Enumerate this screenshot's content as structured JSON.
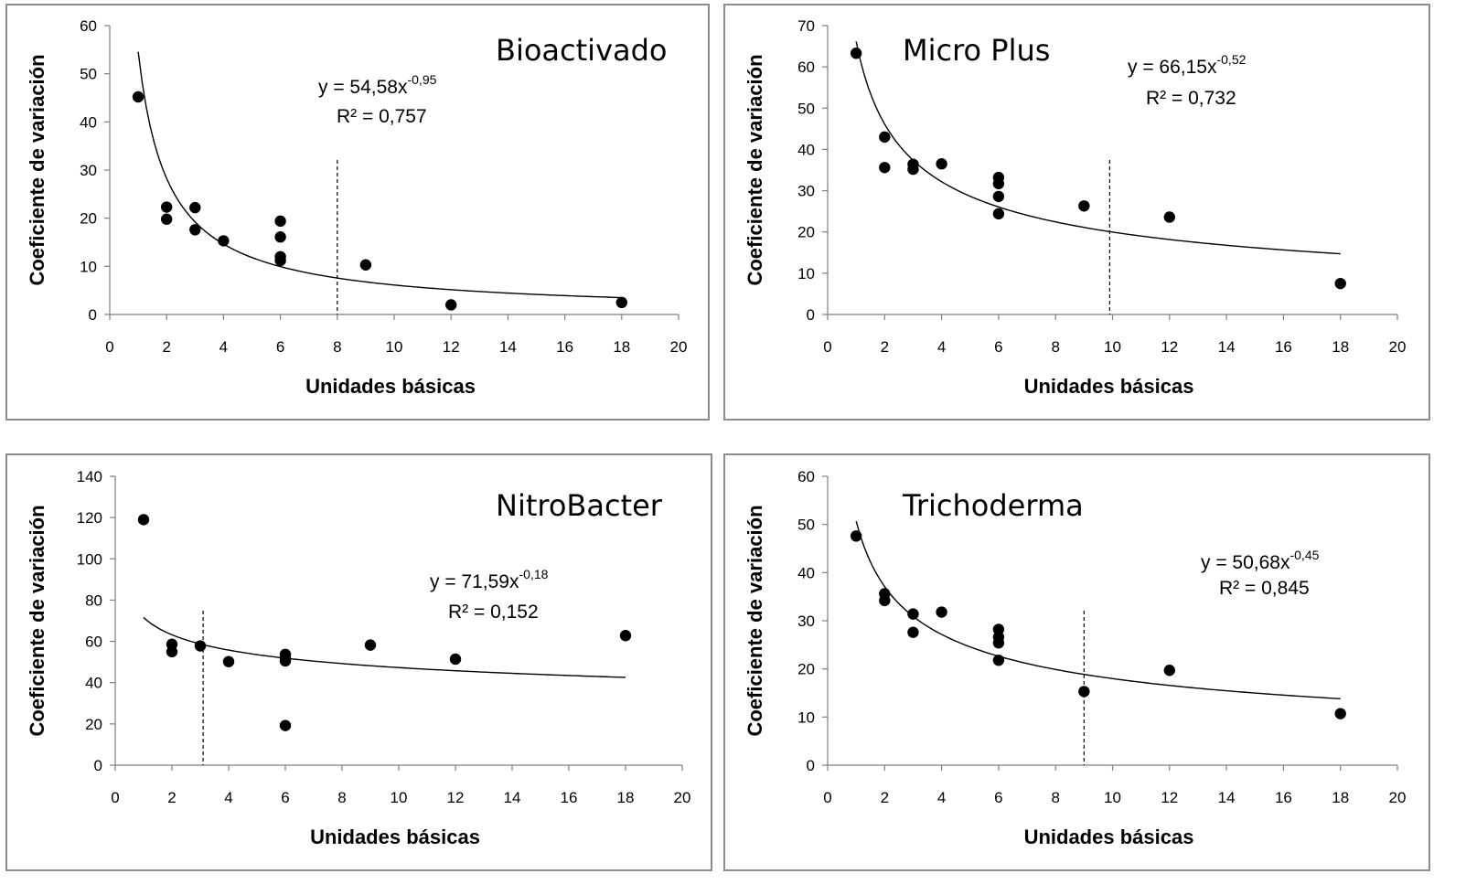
{
  "chart_data": [
    {
      "type": "scatter",
      "title": "Bioactivado",
      "xlabel": "Unidades básicas",
      "ylabel": "Coeficiente de variación",
      "xlim": [
        0,
        20
      ],
      "ylim": [
        0,
        60
      ],
      "xticks": [
        "0",
        "2",
        "4",
        "6",
        "8",
        "10",
        "12",
        "14",
        "16",
        "18",
        "20"
      ],
      "yticks": [
        "0",
        "10",
        "20",
        "30",
        "40",
        "50",
        "60"
      ],
      "points": [
        [
          1,
          45.2
        ],
        [
          2,
          22.3
        ],
        [
          2,
          19.8
        ],
        [
          3,
          22.2
        ],
        [
          3,
          17.6
        ],
        [
          4,
          15.3
        ],
        [
          6,
          19.4
        ],
        [
          6,
          16.1
        ],
        [
          6,
          12
        ],
        [
          6,
          11.2
        ],
        [
          9,
          10.3
        ],
        [
          12,
          2
        ],
        [
          18,
          2.5
        ]
      ],
      "trendline": {
        "type": "power",
        "a": 54.58,
        "b": -0.95,
        "x_range": [
          1,
          18
        ]
      },
      "equation": {
        "prefix": "y = 54,58x",
        "exponent": "-0,95",
        "r2": "R² = 0,757"
      },
      "reference_line_x": 8
    },
    {
      "type": "scatter",
      "title": "Micro Plus",
      "xlabel": "Unidades básicas",
      "ylabel": "Coeficiente de variación",
      "xlim": [
        0,
        20
      ],
      "ylim": [
        0,
        70
      ],
      "xticks": [
        "0",
        "2",
        "4",
        "6",
        "8",
        "10",
        "12",
        "14",
        "16",
        "18",
        "20"
      ],
      "yticks": [
        "0",
        "10",
        "20",
        "30",
        "40",
        "50",
        "60",
        "70"
      ],
      "points": [
        [
          1,
          63.3
        ],
        [
          2,
          43
        ],
        [
          2,
          35.6
        ],
        [
          3,
          36.4
        ],
        [
          3,
          35.2
        ],
        [
          4,
          36.5
        ],
        [
          6,
          33.2
        ],
        [
          6,
          31.7
        ],
        [
          6,
          28.6
        ],
        [
          6,
          24.4
        ],
        [
          9,
          26.3
        ],
        [
          12,
          23.6
        ],
        [
          18,
          7.5
        ]
      ],
      "trendline": {
        "type": "power",
        "a": 66.15,
        "b": -0.52,
        "x_range": [
          1,
          18
        ]
      },
      "equation": {
        "prefix": "y = 66,15x",
        "exponent": "-0,52",
        "r2": "R² = 0,732"
      },
      "reference_line_x": 9.9
    },
    {
      "type": "scatter",
      "title": "NitroBacter",
      "xlabel": "Unidades básicas",
      "ylabel": "Coeficiente de variación",
      "xlim": [
        0,
        20
      ],
      "ylim": [
        0,
        140
      ],
      "xticks": [
        "0",
        "2",
        "4",
        "6",
        "8",
        "10",
        "12",
        "14",
        "16",
        "18",
        "20"
      ],
      "yticks": [
        "0",
        "20",
        "40",
        "60",
        "80",
        "100",
        "120",
        "140"
      ],
      "points": [
        [
          1,
          119
        ],
        [
          2,
          58.6
        ],
        [
          2,
          55
        ],
        [
          3,
          57.8
        ],
        [
          4,
          50.2
        ],
        [
          6,
          53.7
        ],
        [
          6,
          52
        ],
        [
          6,
          50.5
        ],
        [
          6,
          19.2
        ],
        [
          9,
          58.2
        ],
        [
          12,
          51.4
        ],
        [
          18,
          62.8
        ]
      ],
      "trendline": {
        "type": "power",
        "a": 71.59,
        "b": -0.18,
        "x_range": [
          1,
          18
        ]
      },
      "equation": {
        "prefix": "y = 71,59x",
        "exponent": "-0,18",
        "r2": "R² = 0,152"
      },
      "reference_line_x": 3.1
    },
    {
      "type": "scatter",
      "title": "Trichoderma",
      "xlabel": "Unidades básicas",
      "ylabel": "Coeficiente de variación",
      "xlim": [
        0,
        20
      ],
      "ylim": [
        0,
        60
      ],
      "xticks": [
        "0",
        "2",
        "4",
        "6",
        "8",
        "10",
        "12",
        "14",
        "16",
        "18",
        "20"
      ],
      "yticks": [
        "0",
        "10",
        "20",
        "30",
        "40",
        "50",
        "60"
      ],
      "points": [
        [
          1,
          47.6
        ],
        [
          2,
          35.6
        ],
        [
          2,
          34.2
        ],
        [
          3,
          31.4
        ],
        [
          3,
          27.6
        ],
        [
          4,
          31.8
        ],
        [
          6,
          28.2
        ],
        [
          6,
          26.6
        ],
        [
          6,
          25.4
        ],
        [
          6,
          21.8
        ],
        [
          9,
          15.3
        ],
        [
          12,
          19.7
        ],
        [
          18,
          10.7
        ]
      ],
      "trendline": {
        "type": "power",
        "a": 50.68,
        "b": -0.45,
        "x_range": [
          1,
          18
        ]
      },
      "equation": {
        "prefix": "y = 50,68x",
        "exponent": "-0,45",
        "r2": "R² = 0,845"
      },
      "reference_line_x": 9
    }
  ]
}
